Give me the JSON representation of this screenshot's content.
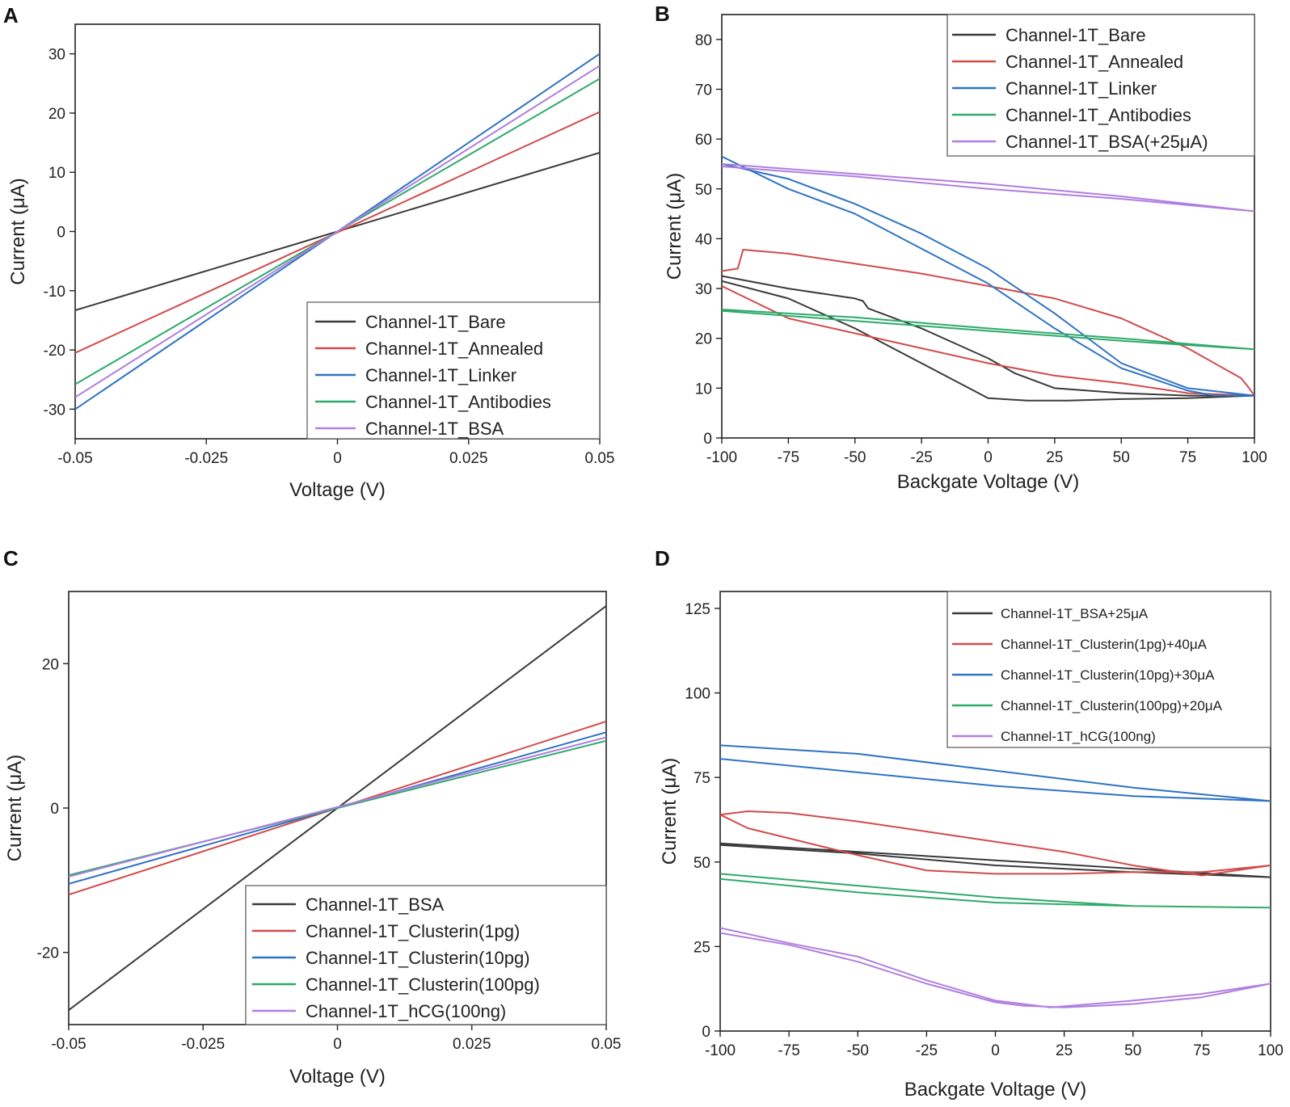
{
  "colors": {
    "black": "#3a3a3a",
    "red": "#d24b4b",
    "blue": "#2f73c3",
    "green": "#2eaa6a",
    "violet": "#b07ee0"
  },
  "chart_data": [
    {
      "panel": "A",
      "type": "line",
      "xlabel": "Voltage (V)",
      "ylabel": "Current (μA)",
      "xlim": [
        -0.05,
        0.05
      ],
      "ylim": [
        -35,
        35
      ],
      "xticks": [
        -0.05,
        -0.025,
        0,
        0.025,
        0.05
      ],
      "xtick_labels": [
        "-0.05",
        "-0.025",
        "0",
        "0.025",
        "0.05"
      ],
      "yticks": [
        -30,
        -20,
        -10,
        0,
        10,
        20,
        30
      ],
      "ytick_labels": [
        "-30",
        "-20",
        "-10",
        "0",
        "10",
        "20",
        "30"
      ],
      "legend_position": "bottom-right",
      "series": [
        {
          "name": "Channel-1T_Bare",
          "color": "black",
          "x": [
            -0.05,
            0.05
          ],
          "y": [
            -13.3,
            13.3
          ]
        },
        {
          "name": "Channel-1T_Annealed",
          "color": "red",
          "x": [
            -0.05,
            0.05
          ],
          "y": [
            -20.5,
            20.2
          ]
        },
        {
          "name": "Channel-1T_Linker",
          "color": "blue",
          "x": [
            -0.05,
            0.05
          ],
          "y": [
            -30.0,
            30.0
          ]
        },
        {
          "name": "Channel-1T_Antibodies",
          "color": "green",
          "x": [
            -0.05,
            0.05
          ],
          "y": [
            -25.8,
            25.8
          ]
        },
        {
          "name": "Channel-1T_BSA",
          "color": "violet",
          "x": [
            -0.05,
            0.05
          ],
          "y": [
            -28.0,
            28.0
          ]
        }
      ]
    },
    {
      "panel": "B",
      "type": "line",
      "xlabel": "Backgate Voltage (V)",
      "ylabel": "Current (μA)",
      "xlim": [
        -100,
        100
      ],
      "ylim": [
        0,
        85
      ],
      "xticks": [
        -100,
        -75,
        -50,
        -25,
        0,
        25,
        50,
        75,
        100
      ],
      "xtick_labels": [
        "-100",
        "-75",
        "-50",
        "-25",
        "0",
        "25",
        "50",
        "75",
        "100"
      ],
      "yticks": [
        0,
        10,
        20,
        30,
        40,
        50,
        60,
        70,
        80
      ],
      "ytick_labels": [
        "0",
        "10",
        "20",
        "30",
        "40",
        "50",
        "60",
        "70",
        "80"
      ],
      "legend_position": "top-right",
      "series": [
        {
          "name": "Channel-1T_Bare",
          "color": "black",
          "x": [
            -100,
            -75,
            -50,
            -47,
            -45,
            -25,
            0,
            10,
            25,
            50,
            75,
            100,
            75,
            50,
            30,
            15,
            0,
            -25,
            -50,
            -75,
            -100
          ],
          "y": [
            32.5,
            30,
            28,
            27.5,
            26,
            22,
            16,
            13,
            10,
            9,
            8.5,
            8.5,
            8,
            7.8,
            7.5,
            7.5,
            8,
            15,
            22,
            28,
            31.5
          ]
        },
        {
          "name": "Channel-1T_Annealed",
          "color": "red",
          "x": [
            -100,
            -94,
            -92,
            -75,
            -50,
            -25,
            0,
            25,
            50,
            75,
            95,
            98,
            100,
            75,
            50,
            25,
            0,
            -25,
            -50,
            -75,
            -100
          ],
          "y": [
            33.5,
            34,
            37.8,
            37,
            35,
            33,
            30.5,
            28,
            24,
            18,
            12,
            10,
            8.5,
            9,
            11,
            12.5,
            15,
            18,
            21,
            24,
            30.5
          ]
        },
        {
          "name": "Channel-1T_Linker",
          "color": "blue",
          "x": [
            -100,
            -75,
            -50,
            -25,
            0,
            25,
            50,
            75,
            85,
            100,
            75,
            50,
            25,
            0,
            -25,
            -50,
            -75,
            -100
          ],
          "y": [
            56.5,
            50,
            45,
            38,
            31,
            22,
            14,
            9.5,
            8.5,
            8.5,
            10,
            15,
            25,
            34,
            41,
            47,
            52,
            55
          ]
        },
        {
          "name": "Channel-1T_Antibodies",
          "color": "green",
          "x": [
            -100,
            -50,
            0,
            50,
            100,
            50,
            0,
            -50,
            -100
          ],
          "y": [
            25.8,
            24.2,
            22,
            20,
            17.8,
            19.5,
            21.5,
            23.5,
            25.5
          ]
        },
        {
          "name": "Channel-1T_BSA(+25μA)",
          "color": "violet",
          "x": [
            -100,
            -50,
            0,
            50,
            100,
            50,
            0,
            -50,
            -100
          ],
          "y": [
            55,
            53,
            51,
            48.5,
            45.5,
            48,
            50,
            52.5,
            54.5
          ]
        }
      ]
    },
    {
      "panel": "C",
      "type": "line",
      "xlabel": "Voltage (V)",
      "ylabel": "Current (μA)",
      "xlim": [
        -0.05,
        0.05
      ],
      "ylim": [
        -30,
        30
      ],
      "xticks": [
        -0.05,
        -0.025,
        0,
        0.025,
        0.05
      ],
      "xtick_labels": [
        "-0.05",
        "-0.025",
        "0",
        "0.025",
        "0.05"
      ],
      "yticks": [
        -20,
        0,
        20
      ],
      "ytick_labels": [
        "-20",
        "0",
        "20"
      ],
      "legend_position": "bottom-right",
      "series": [
        {
          "name": "Channel-1T_BSA",
          "color": "black",
          "x": [
            -0.05,
            0.05
          ],
          "y": [
            -28.0,
            28.0
          ]
        },
        {
          "name": "Channel-1T_Clusterin(1pg)",
          "color": "red",
          "x": [
            -0.05,
            0.05
          ],
          "y": [
            -12.0,
            12.0
          ]
        },
        {
          "name": "Channel-1T_Clusterin(10pg)",
          "color": "blue",
          "x": [
            -0.05,
            0.05
          ],
          "y": [
            -10.5,
            10.5
          ]
        },
        {
          "name": "Channel-1T_Clusterin(100pg)",
          "color": "green",
          "x": [
            -0.05,
            0.05
          ],
          "y": [
            -9.3,
            9.3
          ]
        },
        {
          "name": "Channel-1T_hCG(100ng)",
          "color": "violet",
          "x": [
            -0.05,
            0.05
          ],
          "y": [
            -9.5,
            9.8
          ]
        }
      ]
    },
    {
      "panel": "D",
      "type": "line",
      "xlabel": "Backgate Voltage (V)",
      "ylabel": "Current (μA)",
      "xlim": [
        -100,
        100
      ],
      "ylim": [
        0,
        130
      ],
      "xticks": [
        -100,
        -75,
        -50,
        -25,
        0,
        25,
        50,
        75,
        100
      ],
      "xtick_labels": [
        "-100",
        "-75",
        "-50",
        "-25",
        "0",
        "25",
        "50",
        "75",
        "100"
      ],
      "yticks": [
        0,
        25,
        50,
        75,
        100,
        125
      ],
      "ytick_labels": [
        "0",
        "25",
        "50",
        "75",
        "100",
        "125"
      ],
      "legend_position": "top-right",
      "series": [
        {
          "name": "Channel-1T_BSA+25μA",
          "color": "black",
          "x": [
            -100,
            -50,
            0,
            50,
            100,
            50,
            0,
            -50,
            -100
          ],
          "y": [
            55.5,
            53,
            50.5,
            48,
            45.5,
            47,
            49,
            52.5,
            55
          ]
        },
        {
          "name": "Channel-1T_Clusterin(1pg)+40μA",
          "color": "red",
          "x": [
            -100,
            -90,
            -75,
            -50,
            -25,
            0,
            25,
            50,
            75,
            100,
            75,
            50,
            25,
            0,
            -25,
            -50,
            -75,
            -90,
            -100
          ],
          "y": [
            64,
            65,
            64.5,
            62,
            59,
            56,
            53,
            49,
            46,
            49,
            47,
            47,
            46.5,
            46.5,
            47.5,
            52,
            57,
            60,
            64
          ]
        },
        {
          "name": "Channel-1T_Clusterin(10pg)+30μA",
          "color": "blue",
          "x": [
            -100,
            -50,
            0,
            50,
            100,
            50,
            0,
            -50,
            -100
          ],
          "y": [
            84.5,
            82,
            77,
            72,
            68,
            69.5,
            72.5,
            76.5,
            80.5
          ]
        },
        {
          "name": "Channel-1T_Clusterin(100pg)+20μA",
          "color": "green",
          "x": [
            -100,
            -50,
            0,
            50,
            100,
            50,
            0,
            -50,
            -100
          ],
          "y": [
            46.5,
            43,
            39.5,
            37,
            36.5,
            37,
            38,
            41,
            45
          ]
        },
        {
          "name": "Channel-1T_hCG(100ng)",
          "color": "violet",
          "x": [
            -100,
            -75,
            -50,
            -25,
            0,
            20,
            50,
            75,
            100,
            75,
            50,
            25,
            10,
            0,
            -25,
            -50,
            -75,
            -100
          ],
          "y": [
            30.5,
            26,
            22,
            15,
            9,
            7,
            9,
            11,
            14,
            10,
            8,
            7,
            7.5,
            8.5,
            14,
            20.5,
            25.5,
            29
          ]
        }
      ]
    }
  ]
}
